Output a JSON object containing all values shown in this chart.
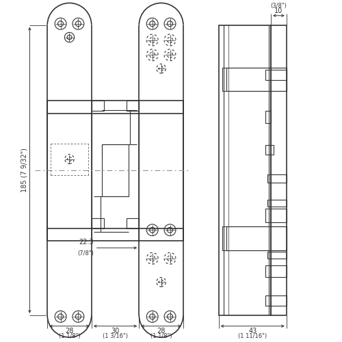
{
  "bg_color": "#ffffff",
  "lc": "#333333",
  "dc": "#333333",
  "lw": 0.8,
  "lw2": 1.2,
  "lw_thin": 0.5,
  "dims": {
    "height_label": "185 (7 9/32\")",
    "w1_label": "28",
    "w1_sub": "(1 1/8\")",
    "w2_label": "30",
    "w2_sub": "(1 3/16\")",
    "w3_label": "28",
    "w3_sub": "(1 1/8\")",
    "gap_label": "22.3",
    "gap_sub": "(7/8\")",
    "sw_label": "10",
    "sw_sub": "(3/8\")",
    "st_label": "43",
    "st_sub": "(1 11/16\")"
  }
}
